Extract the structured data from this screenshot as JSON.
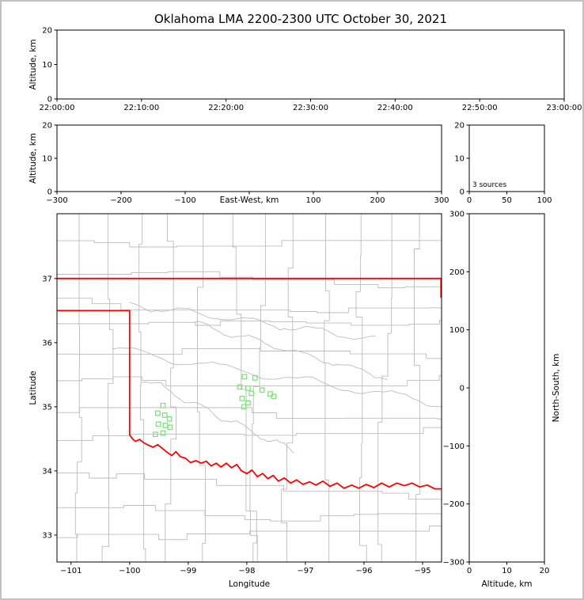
{
  "chart_data": {
    "type": "scatter",
    "title": "Oklahoma LMA 2200-2300 UTC October 30, 2021",
    "colors": {
      "axis": "#000000",
      "state_border": "#ff0000",
      "county_lines": "#bcbcbc",
      "station_marker": "#80e27e",
      "figure_border": "#c0c0c0"
    },
    "panels": {
      "time_height": {
        "ylabel": "Altitude, km",
        "xlim": [
          0,
          3600
        ],
        "ylim": [
          0,
          20
        ],
        "xticks": [
          {
            "v": 0,
            "label": "22:00:00"
          },
          {
            "v": 600,
            "label": "22:10:00"
          },
          {
            "v": 1200,
            "label": "22:20:00"
          },
          {
            "v": 1800,
            "label": "22:30:00"
          },
          {
            "v": 2400,
            "label": "22:40:00"
          },
          {
            "v": 3000,
            "label": "22:50:00"
          },
          {
            "v": 3600,
            "label": "23:00:00"
          }
        ],
        "yticks": [
          {
            "v": 0,
            "label": "0"
          },
          {
            "v": 10,
            "label": "10"
          },
          {
            "v": 20,
            "label": "20"
          }
        ],
        "points": []
      },
      "ew_height": {
        "xlabel": "East-West, km",
        "xlabel_inline": true,
        "ylabel": "Altitude, km",
        "xlim": [
          -300,
          300
        ],
        "ylim": [
          0,
          20
        ],
        "xticks": [
          {
            "v": -300,
            "label": "−300"
          },
          {
            "v": -200,
            "label": "−200"
          },
          {
            "v": -100,
            "label": "−100"
          },
          {
            "v": 0,
            "label": ""
          },
          {
            "v": 100,
            "label": "100"
          },
          {
            "v": 200,
            "label": "200"
          },
          {
            "v": 300,
            "label": "300"
          }
        ],
        "yticks": [
          {
            "v": 0,
            "label": "0"
          },
          {
            "v": 10,
            "label": "10"
          },
          {
            "v": 20,
            "label": "20"
          }
        ],
        "points": []
      },
      "alt_histogram": {
        "xlim": [
          0,
          100
        ],
        "ylim": [
          0,
          20
        ],
        "xticks": [
          {
            "v": 0,
            "label": "0"
          },
          {
            "v": 50,
            "label": "50"
          },
          {
            "v": 100,
            "label": "100"
          }
        ],
        "yticks": [
          {
            "v": 0,
            "label": "0"
          },
          {
            "v": 10,
            "label": "10"
          },
          {
            "v": 20,
            "label": "20"
          }
        ],
        "annotation": "3 sources",
        "points": []
      },
      "plan_view": {
        "xlabel": "Longitude",
        "ylabel": "Latitude",
        "xlim": [
          -101.24,
          -94.676
        ],
        "ylim": [
          32.58,
          38.01
        ],
        "xticks": [
          {
            "v": -101,
            "label": "−101"
          },
          {
            "v": -100,
            "label": "−100"
          },
          {
            "v": -99,
            "label": "−99"
          },
          {
            "v": -98,
            "label": "−98"
          },
          {
            "v": -97,
            "label": "−97"
          },
          {
            "v": -96,
            "label": "−96"
          },
          {
            "v": -95,
            "label": "−95"
          }
        ],
        "yticks": [
          {
            "v": 33,
            "label": "33"
          },
          {
            "v": 34,
            "label": "34"
          },
          {
            "v": 35,
            "label": "35"
          },
          {
            "v": 36,
            "label": "36"
          },
          {
            "v": 37,
            "label": "37"
          }
        ],
        "stations": {
          "marker": "square",
          "color": "#80e27e",
          "size": 5.5,
          "points": [
            [
              -98.04,
              35.47
            ],
            [
              -97.86,
              35.45
            ],
            [
              -98.12,
              35.31
            ],
            [
              -97.98,
              35.29
            ],
            [
              -97.74,
              35.26
            ],
            [
              -97.92,
              35.21
            ],
            [
              -98.08,
              35.13
            ],
            [
              -97.6,
              35.2
            ],
            [
              -97.54,
              35.16
            ],
            [
              -97.98,
              35.06
            ],
            [
              -98.05,
              35.0
            ],
            [
              -99.43,
              35.02
            ],
            [
              -99.52,
              34.9
            ],
            [
              -99.4,
              34.87
            ],
            [
              -99.32,
              34.81
            ],
            [
              -99.51,
              34.73
            ],
            [
              -99.39,
              34.71
            ],
            [
              -99.43,
              34.59
            ],
            [
              -99.56,
              34.57
            ],
            [
              -99.31,
              34.68
            ]
          ]
        }
      },
      "ns_height": {
        "xlabel": "Altitude, km",
        "ylabel": "North-South, km",
        "ylabel_side": "right",
        "xlim": [
          0,
          20
        ],
        "ylim": [
          -300,
          300
        ],
        "xticks": [
          {
            "v": 0,
            "label": "0"
          },
          {
            "v": 10,
            "label": "10"
          },
          {
            "v": 20,
            "label": "20"
          }
        ],
        "yticks": [
          {
            "v": 300,
            "label": "300"
          },
          {
            "v": 200,
            "label": "200"
          },
          {
            "v": 100,
            "label": "100"
          },
          {
            "v": 0,
            "label": "0"
          },
          {
            "v": -100,
            "label": "−100"
          },
          {
            "v": -200,
            "label": "−200"
          },
          {
            "v": -300,
            "label": "−300"
          }
        ],
        "points": []
      }
    },
    "map": {
      "county_color": "#bcbcbc",
      "county_seed": 11,
      "rivers": [
        {
          "from": [
            -100.3,
            35.9
          ],
          "to": [
            -94.68,
            35.05
          ],
          "amp": 0.07
        },
        {
          "from": [
            -100.0,
            36.6
          ],
          "to": [
            -95.8,
            36.05
          ],
          "amp": 0.06
        },
        {
          "from": [
            -99.8,
            35.45
          ],
          "to": [
            -97.2,
            34.3
          ],
          "amp": 0.06
        },
        {
          "from": [
            -98.9,
            36.3
          ],
          "to": [
            -95.6,
            35.45
          ],
          "amp": 0.05
        }
      ],
      "state_border": {
        "color": "#ff0000",
        "lines": [
          [
            [
              -101.24,
              37.0
            ],
            [
              -94.676,
              37.0
            ]
          ],
          [
            [
              -94.685,
              37.0
            ],
            [
              -94.685,
              36.7
            ]
          ],
          [
            [
              -101.24,
              36.5
            ],
            [
              -100.0,
              36.5
            ],
            [
              -100.0,
              34.563
            ],
            [
              -99.95,
              34.5
            ],
            [
              -99.9,
              34.46
            ],
            [
              -99.83,
              34.49
            ],
            [
              -99.76,
              34.44
            ],
            [
              -99.68,
              34.4
            ],
            [
              -99.6,
              34.37
            ],
            [
              -99.52,
              34.41
            ],
            [
              -99.44,
              34.35
            ],
            [
              -99.36,
              34.29
            ],
            [
              -99.28,
              34.24
            ],
            [
              -99.21,
              34.3
            ],
            [
              -99.13,
              34.22
            ],
            [
              -99.05,
              34.2
            ],
            [
              -98.96,
              34.13
            ],
            [
              -98.87,
              34.16
            ],
            [
              -98.78,
              34.12
            ],
            [
              -98.69,
              34.15
            ],
            [
              -98.61,
              34.08
            ],
            [
              -98.52,
              34.12
            ],
            [
              -98.44,
              34.06
            ],
            [
              -98.35,
              34.12
            ],
            [
              -98.26,
              34.05
            ],
            [
              -98.17,
              34.1
            ],
            [
              -98.09,
              34.0
            ],
            [
              -98.0,
              33.96
            ],
            [
              -97.91,
              34.01
            ],
            [
              -97.82,
              33.91
            ],
            [
              -97.73,
              33.96
            ],
            [
              -97.64,
              33.88
            ],
            [
              -97.55,
              33.93
            ],
            [
              -97.46,
              33.84
            ],
            [
              -97.36,
              33.89
            ],
            [
              -97.25,
              33.81
            ],
            [
              -97.15,
              33.86
            ],
            [
              -97.04,
              33.79
            ],
            [
              -96.93,
              33.83
            ],
            [
              -96.82,
              33.78
            ],
            [
              -96.7,
              33.84
            ],
            [
              -96.58,
              33.76
            ],
            [
              -96.46,
              33.81
            ],
            [
              -96.34,
              33.73
            ],
            [
              -96.21,
              33.78
            ],
            [
              -96.09,
              33.73
            ],
            [
              -95.96,
              33.79
            ],
            [
              -95.83,
              33.74
            ],
            [
              -95.7,
              33.81
            ],
            [
              -95.57,
              33.75
            ],
            [
              -95.44,
              33.81
            ],
            [
              -95.31,
              33.77
            ],
            [
              -95.18,
              33.81
            ],
            [
              -95.05,
              33.75
            ],
            [
              -94.92,
              33.78
            ],
            [
              -94.79,
              33.72
            ],
            [
              -94.676,
              33.72
            ]
          ]
        ]
      }
    }
  }
}
